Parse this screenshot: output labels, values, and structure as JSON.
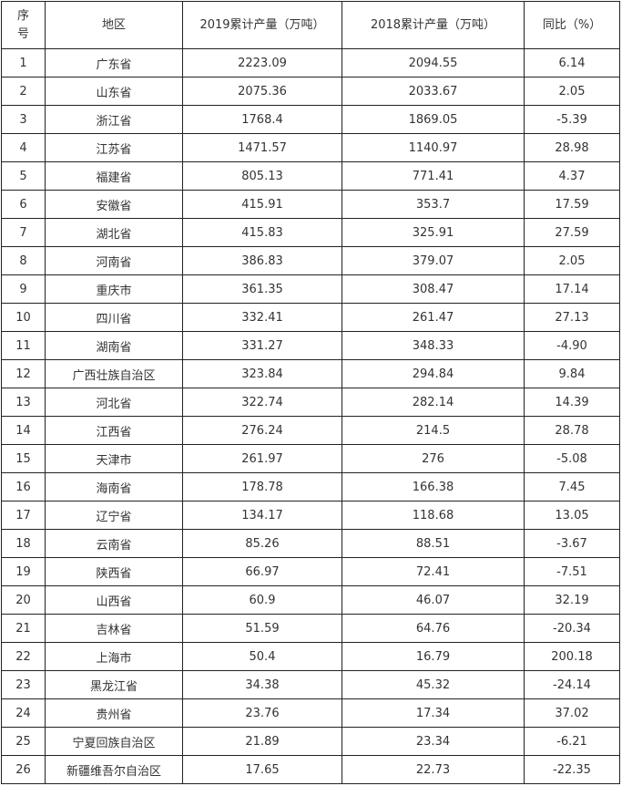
{
  "table": {
    "headers": [
      "序号",
      "地区",
      "2019累计产量（万吨）",
      "2018累计产量（万吨）",
      "同比（%）"
    ],
    "rows": [
      [
        "1",
        "广东省",
        "2223.09",
        "2094.55",
        "6.14"
      ],
      [
        "2",
        "山东省",
        "2075.36",
        "2033.67",
        "2.05"
      ],
      [
        "3",
        "浙江省",
        "1768.4",
        "1869.05",
        "-5.39"
      ],
      [
        "4",
        "江苏省",
        "1471.57",
        "1140.97",
        "28.98"
      ],
      [
        "5",
        "福建省",
        "805.13",
        "771.41",
        "4.37"
      ],
      [
        "6",
        "安徽省",
        "415.91",
        "353.7",
        "17.59"
      ],
      [
        "7",
        "湖北省",
        "415.83",
        "325.91",
        "27.59"
      ],
      [
        "8",
        "河南省",
        "386.83",
        "379.07",
        "2.05"
      ],
      [
        "9",
        "重庆市",
        "361.35",
        "308.47",
        "17.14"
      ],
      [
        "10",
        "四川省",
        "332.41",
        "261.47",
        "27.13"
      ],
      [
        "11",
        "湖南省",
        "331.27",
        "348.33",
        "-4.90"
      ],
      [
        "12",
        "广西壮族自治区",
        "323.84",
        "294.84",
        "9.84"
      ],
      [
        "13",
        "河北省",
        "322.74",
        "282.14",
        "14.39"
      ],
      [
        "14",
        "江西省",
        "276.24",
        "214.5",
        "28.78"
      ],
      [
        "15",
        "天津市",
        "261.97",
        "276",
        "-5.08"
      ],
      [
        "16",
        "海南省",
        "178.78",
        "166.38",
        "7.45"
      ],
      [
        "17",
        "辽宁省",
        "134.17",
        "118.68",
        "13.05"
      ],
      [
        "18",
        "云南省",
        "85.26",
        "88.51",
        "-3.67"
      ],
      [
        "19",
        "陕西省",
        "66.97",
        "72.41",
        "-7.51"
      ],
      [
        "20",
        "山西省",
        "60.9",
        "46.07",
        "32.19"
      ],
      [
        "21",
        "吉林省",
        "51.59",
        "64.76",
        "-20.34"
      ],
      [
        "22",
        "上海市",
        "50.4",
        "16.79",
        "200.18"
      ],
      [
        "23",
        "黑龙江省",
        "34.38",
        "45.32",
        "-24.14"
      ],
      [
        "24",
        "贵州省",
        "23.76",
        "17.34",
        "37.02"
      ],
      [
        "25",
        "宁夏回族自治区",
        "21.89",
        "23.34",
        "-6.21"
      ],
      [
        "26",
        "新疆维吾尔自治区",
        "17.65",
        "22.73",
        "-22.35"
      ]
    ]
  }
}
